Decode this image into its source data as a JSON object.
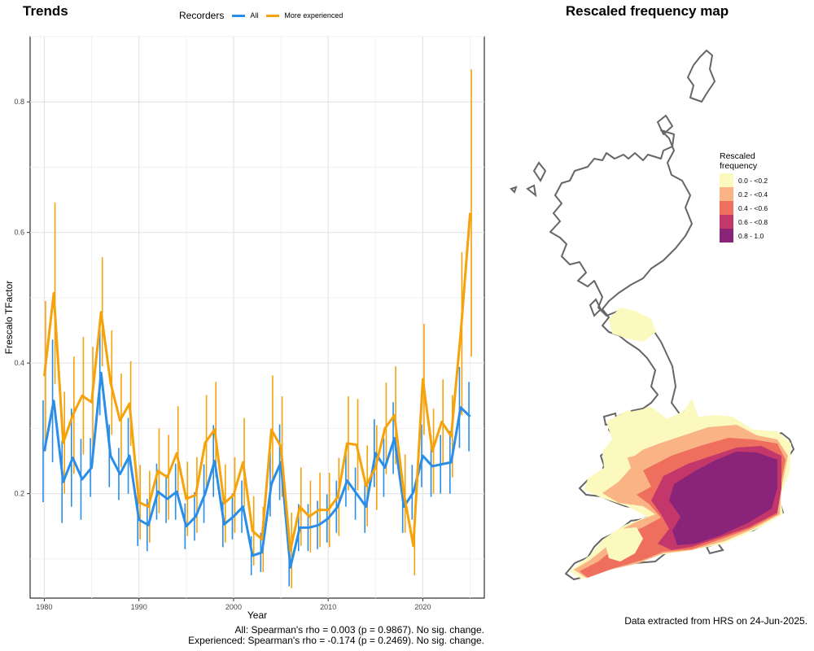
{
  "left_title": "Trends",
  "right_title": "Rescaled frequency map",
  "legend": {
    "title": "Recorders",
    "all_label": "All",
    "exp_label": "More experienced",
    "all_color": "#2a8ee8",
    "exp_color": "#f5a20b"
  },
  "stats": {
    "all": "All: Spearman's rho = 0.003 (p = 0.9867). No sig. change.",
    "experienced": "Experienced: Spearman's rho = -0.174 (p = 0.2469). No sig. change."
  },
  "footer": "Data extracted from HRS on 24-Jun-2025.",
  "chart_data": {
    "type": "line",
    "xlabel": "Year",
    "ylabel": "Frescalo TFactor",
    "xlim": [
      1978.5,
      1926.5
    ],
    "ylim": [
      0.04,
      0.9
    ],
    "x_ticks": [
      1980,
      1990,
      2000,
      2010,
      2020
    ],
    "y_ticks": [
      0.2,
      0.4,
      0.6,
      0.8
    ],
    "grid": true,
    "legend_position": "top",
    "x": [
      1980,
      1981,
      1982,
      1983,
      1984,
      1985,
      1986,
      1987,
      1988,
      1989,
      1990,
      1991,
      1992,
      1993,
      1994,
      1995,
      1996,
      1997,
      1998,
      1999,
      2000,
      2001,
      2002,
      2003,
      2004,
      2005,
      2006,
      2007,
      2008,
      2009,
      2010,
      2011,
      2012,
      2013,
      2014,
      2015,
      2016,
      2017,
      2018,
      2019,
      2020,
      2021,
      2022,
      2023,
      2024,
      2025
    ],
    "series": [
      {
        "name": "All",
        "color": "#2a8ee8",
        "values": [
          0.265,
          0.342,
          0.218,
          0.255,
          0.222,
          0.24,
          0.385,
          0.258,
          0.23,
          0.258,
          0.16,
          0.152,
          0.203,
          0.192,
          0.203,
          0.15,
          0.165,
          0.2,
          0.25,
          0.153,
          0.165,
          0.18,
          0.105,
          0.11,
          0.215,
          0.248,
          0.087,
          0.148,
          0.148,
          0.152,
          0.162,
          0.18,
          0.22,
          0.2,
          0.18,
          0.262,
          0.24,
          0.285,
          0.18,
          0.202,
          0.258,
          0.242,
          0.245,
          0.248,
          0.332,
          0.318
        ],
        "lower": [
          0.187,
          0.248,
          0.155,
          0.18,
          0.16,
          0.195,
          0.32,
          0.21,
          0.19,
          0.2,
          0.12,
          0.112,
          0.16,
          0.155,
          0.16,
          0.115,
          0.128,
          0.155,
          0.195,
          0.118,
          0.13,
          0.14,
          0.075,
          0.08,
          0.165,
          0.19,
          0.058,
          0.112,
          0.112,
          0.115,
          0.125,
          0.14,
          0.18,
          0.16,
          0.14,
          0.21,
          0.195,
          0.23,
          0.14,
          0.16,
          0.21,
          0.195,
          0.2,
          0.2,
          0.27,
          0.265
        ],
        "upper": [
          0.343,
          0.436,
          0.281,
          0.33,
          0.284,
          0.285,
          0.45,
          0.306,
          0.27,
          0.316,
          0.2,
          0.192,
          0.246,
          0.229,
          0.246,
          0.185,
          0.202,
          0.245,
          0.305,
          0.188,
          0.2,
          0.22,
          0.135,
          0.14,
          0.265,
          0.306,
          0.116,
          0.184,
          0.184,
          0.189,
          0.199,
          0.22,
          0.26,
          0.24,
          0.22,
          0.314,
          0.285,
          0.34,
          0.22,
          0.244,
          0.306,
          0.289,
          0.29,
          0.296,
          0.394,
          0.371
        ]
      },
      {
        "name": "More experienced",
        "color": "#f5a20b",
        "values": [
          0.38,
          0.507,
          0.278,
          0.32,
          0.35,
          0.34,
          0.478,
          0.37,
          0.312,
          0.338,
          0.187,
          0.18,
          0.235,
          0.225,
          0.262,
          0.192,
          0.198,
          0.278,
          0.298,
          0.185,
          0.198,
          0.248,
          0.143,
          0.13,
          0.298,
          0.272,
          0.113,
          0.18,
          0.165,
          0.175,
          0.175,
          0.195,
          0.277,
          0.275,
          0.212,
          0.24,
          0.3,
          0.32,
          0.2,
          0.12,
          0.375,
          0.265,
          0.31,
          0.288,
          0.445,
          0.63
        ],
        "lower": [
          0.265,
          0.368,
          0.2,
          0.23,
          0.26,
          0.255,
          0.395,
          0.29,
          0.24,
          0.273,
          0.13,
          0.125,
          0.17,
          0.16,
          0.19,
          0.135,
          0.14,
          0.205,
          0.225,
          0.125,
          0.14,
          0.18,
          0.09,
          0.08,
          0.215,
          0.195,
          0.055,
          0.12,
          0.11,
          0.118,
          0.118,
          0.135,
          0.205,
          0.205,
          0.15,
          0.175,
          0.23,
          0.245,
          0.14,
          0.075,
          0.29,
          0.2,
          0.245,
          0.225,
          0.32,
          0.41
        ],
        "upper": [
          0.495,
          0.646,
          0.356,
          0.41,
          0.44,
          0.425,
          0.562,
          0.45,
          0.384,
          0.403,
          0.244,
          0.235,
          0.3,
          0.29,
          0.334,
          0.249,
          0.256,
          0.351,
          0.371,
          0.245,
          0.256,
          0.316,
          0.196,
          0.18,
          0.381,
          0.349,
          0.171,
          0.24,
          0.22,
          0.232,
          0.232,
          0.255,
          0.349,
          0.345,
          0.274,
          0.305,
          0.37,
          0.395,
          0.26,
          0.165,
          0.46,
          0.33,
          0.375,
          0.351,
          0.57,
          0.85
        ]
      }
    ]
  },
  "map_legend": {
    "title_line1": "Rescaled",
    "title_line2": "frequency",
    "items": [
      {
        "label": "0.0 - <0.2",
        "color": "#fcf9be"
      },
      {
        "label": "0.2 - <0.4",
        "color": "#f9b385"
      },
      {
        "label": "0.4 - <0.6",
        "color": "#ef6f5e"
      },
      {
        "label": "0.6 - <0.8",
        "color": "#c3376b"
      },
      {
        "label": "0.8 - 1.0",
        "color": "#8a2479"
      }
    ]
  }
}
